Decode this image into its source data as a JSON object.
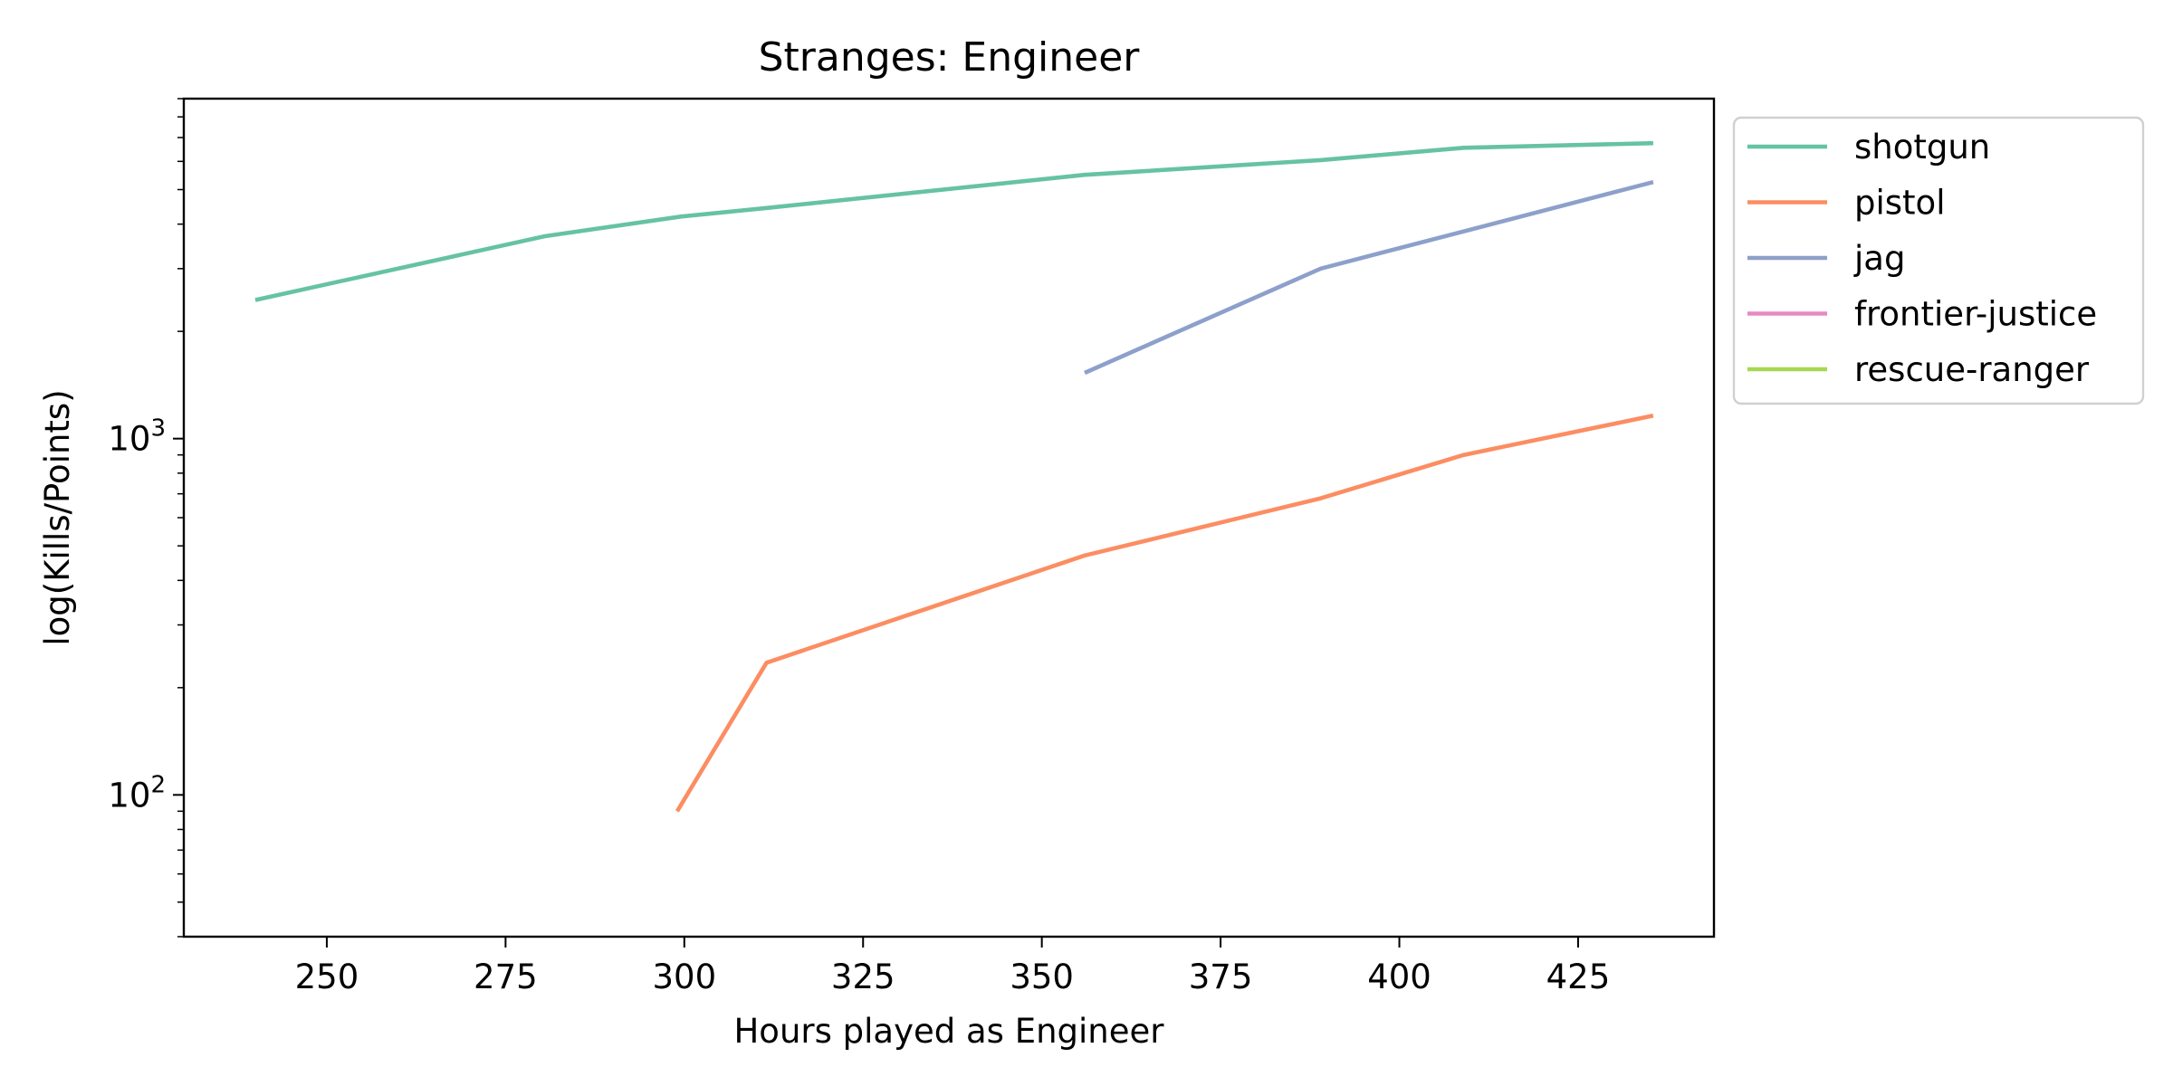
{
  "chart_data": {
    "type": "line",
    "title": "Stranges: Engineer",
    "xlabel": "Hours played as Engineer",
    "ylabel": "log(Kills/Points)",
    "yscale": "log",
    "xlim": [
      230,
      444
    ],
    "ylim": [
      40,
      9000
    ],
    "xticks": [
      250,
      275,
      300,
      325,
      350,
      375,
      400,
      425
    ],
    "yticks": [
      {
        "value": 100,
        "base": "10",
        "exp": "2"
      },
      {
        "value": 1000,
        "base": "10",
        "exp": "3"
      }
    ],
    "legend_position": "outside-top-right",
    "grid": false,
    "series": [
      {
        "name": "shotgun",
        "color": "#66c2a5",
        "x": [
          240,
          280.5,
          299.5,
          312,
          356,
          389,
          409,
          435.5
        ],
        "y": [
          2450,
          3700,
          4200,
          4450,
          5500,
          6050,
          6550,
          6750
        ]
      },
      {
        "name": "pistol",
        "color": "#fc8d62",
        "x": [
          299,
          311.5,
          356,
          389,
          409,
          435.5
        ],
        "y": [
          90,
          235,
          470,
          680,
          900,
          1160
        ]
      },
      {
        "name": "jag",
        "color": "#8da0cb",
        "x": [
          356,
          389,
          435.5
        ],
        "y": [
          1530,
          3000,
          5250
        ]
      },
      {
        "name": "frontier-justice",
        "color": "#e78ac3",
        "x": [],
        "y": []
      },
      {
        "name": "rescue-ranger",
        "color": "#a6d854",
        "x": [],
        "y": []
      }
    ]
  }
}
